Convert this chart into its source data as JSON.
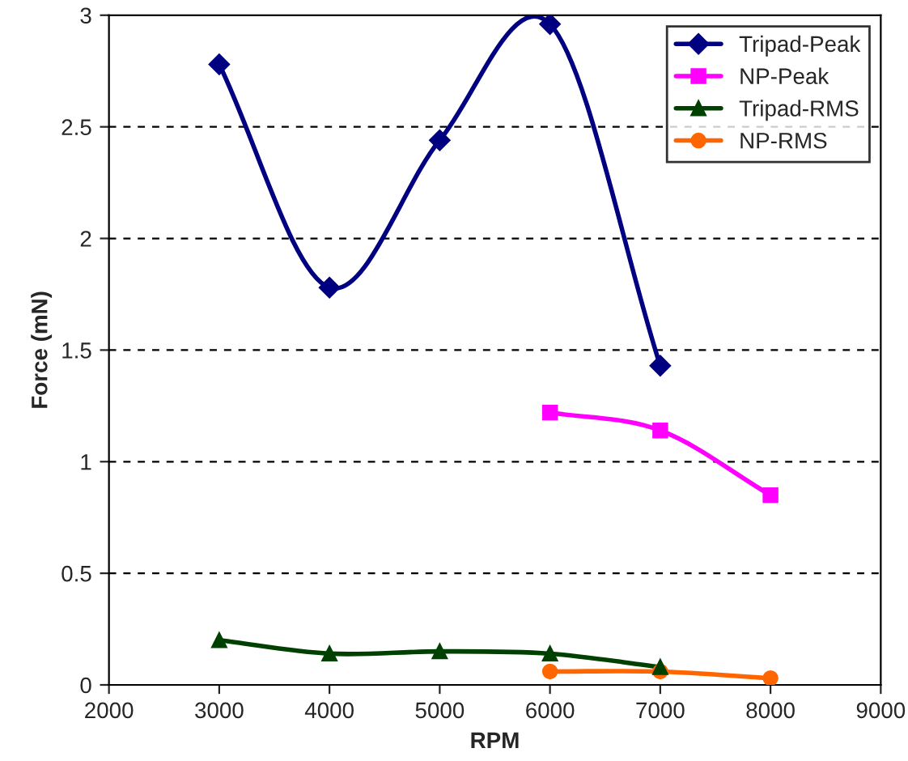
{
  "chart_data": {
    "type": "line",
    "xlabel": "RPM",
    "ylabel": "Force (mN)",
    "xlim": [
      2000,
      9000
    ],
    "xticks": [
      2000,
      3000,
      4000,
      5000,
      6000,
      7000,
      8000,
      9000
    ],
    "ylim": [
      0,
      3
    ],
    "yticks": [
      0,
      0.5,
      1,
      1.5,
      2,
      2.5,
      3
    ],
    "grid": "y",
    "legend": "top right",
    "line_style": "solid",
    "series": [
      {
        "name": "Tripad-Peak",
        "color": "#000080",
        "marker": "diamond",
        "x": [
          3000,
          4000,
          5000,
          6000,
          7000
        ],
        "values": [
          2.78,
          1.78,
          2.44,
          2.96,
          1.43
        ]
      },
      {
        "name": "NP-Peak",
        "color": "#ff00ff",
        "marker": "square",
        "x": [
          6000,
          7000,
          8000
        ],
        "values": [
          1.22,
          1.14,
          0.85
        ]
      },
      {
        "name": "Tripad-RMS",
        "color": "#004000",
        "marker": "triangle",
        "x": [
          3000,
          4000,
          5000,
          6000,
          7000
        ],
        "values": [
          0.2,
          0.14,
          0.15,
          0.14,
          0.08
        ]
      },
      {
        "name": "NP-RMS",
        "color": "#ff6600",
        "marker": "circle",
        "x": [
          6000,
          7000,
          8000
        ],
        "values": [
          0.06,
          0.06,
          0.03
        ]
      }
    ]
  }
}
